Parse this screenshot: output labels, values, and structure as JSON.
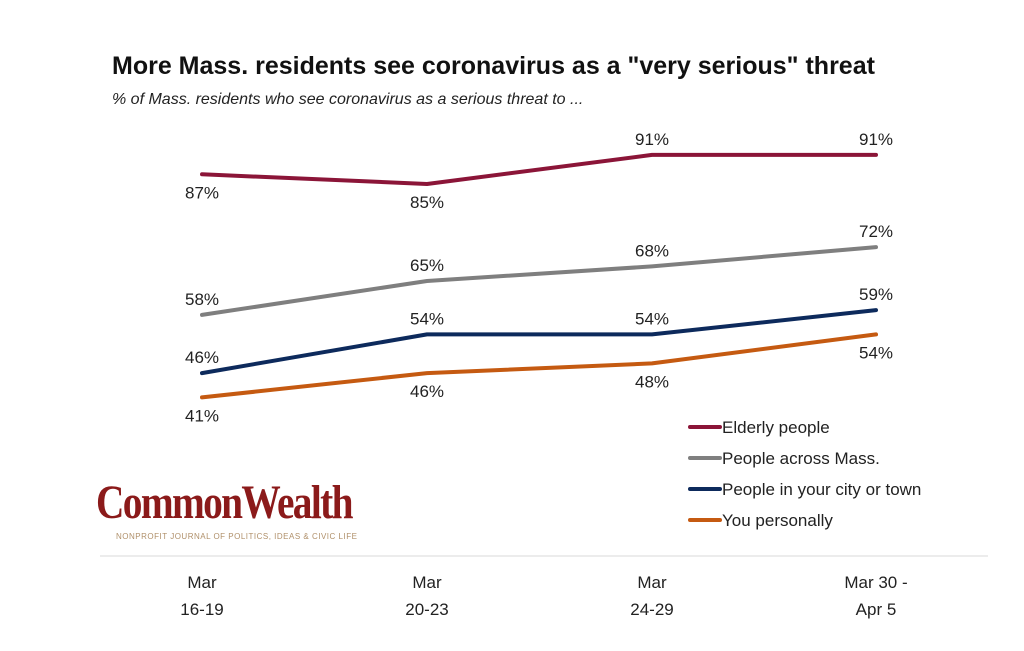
{
  "chart_data": {
    "type": "line",
    "title": "More Mass. residents see coronavirus as a \"very serious\" threat",
    "subtitle": "% of Mass. residents who see coronavirus as a serious threat to ...",
    "categories": [
      [
        "Mar",
        "16-19"
      ],
      [
        "Mar",
        "20-23"
      ],
      [
        "Mar",
        "24-29"
      ],
      [
        "Mar 30 -",
        "Apr 5"
      ]
    ],
    "ylim": [
      30,
      100
    ],
    "grid": false,
    "legend_position": "bottom-right",
    "series": [
      {
        "name": "Elderly people",
        "values": [
          87,
          85,
          91,
          91
        ],
        "labels": [
          "87%",
          "85%",
          "91%",
          "91%"
        ],
        "color": "#8b1538"
      },
      {
        "name": "People across Mass.",
        "values": [
          58,
          65,
          68,
          72
        ],
        "labels": [
          "58%",
          "65%",
          "68%",
          "72%"
        ],
        "color": "#7f7f7f"
      },
      {
        "name": "People in your city or town",
        "values": [
          46,
          54,
          54,
          59
        ],
        "labels": [
          "46%",
          "54%",
          "54%",
          "59%"
        ],
        "color": "#0d2a5c"
      },
      {
        "name": "You personally",
        "values": [
          41,
          46,
          48,
          54
        ],
        "labels": [
          "41%",
          "46%",
          "48%",
          "54%"
        ],
        "color": "#c55a11"
      }
    ]
  },
  "logo": {
    "name": "CommonWealth",
    "tagline": "NONPROFIT JOURNAL OF POLITICS, IDEAS & CIVIC LIFE"
  }
}
